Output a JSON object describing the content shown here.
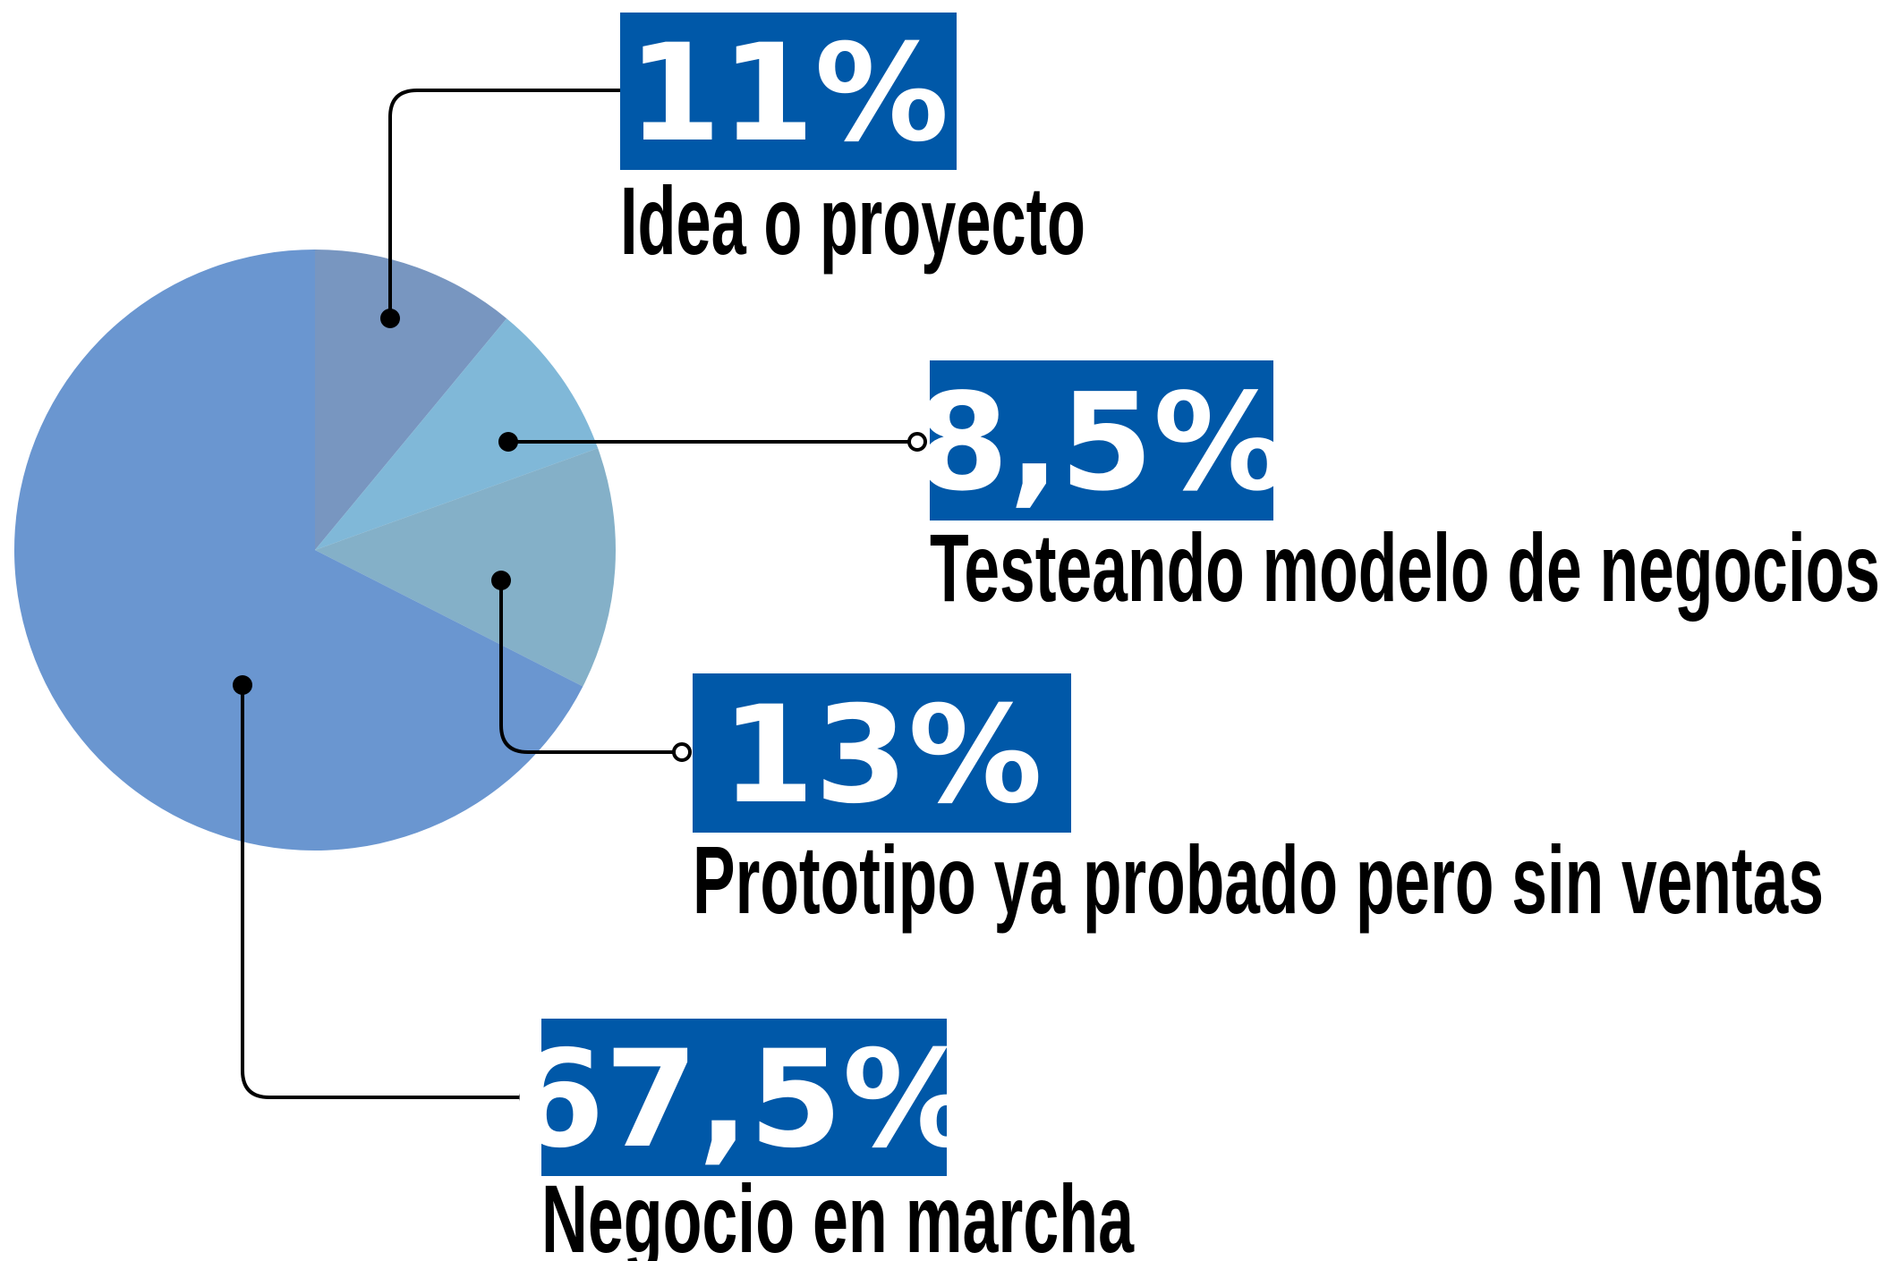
{
  "chart_data": {
    "type": "pie",
    "categories": [
      "Idea o proyecto",
      "Testeando modelo de negocios",
      "Prototipo ya probado pero sin ventas",
      "Negocio en marcha"
    ],
    "values": [
      11,
      8.5,
      13,
      67.5
    ],
    "value_labels": [
      "11%",
      "8,5%",
      "13%",
      "67,5%"
    ],
    "colors": [
      "#7896c0",
      "#80b8d8",
      "#84b0c8",
      "#6a96d0"
    ],
    "label_box_color": "#0058a8"
  }
}
